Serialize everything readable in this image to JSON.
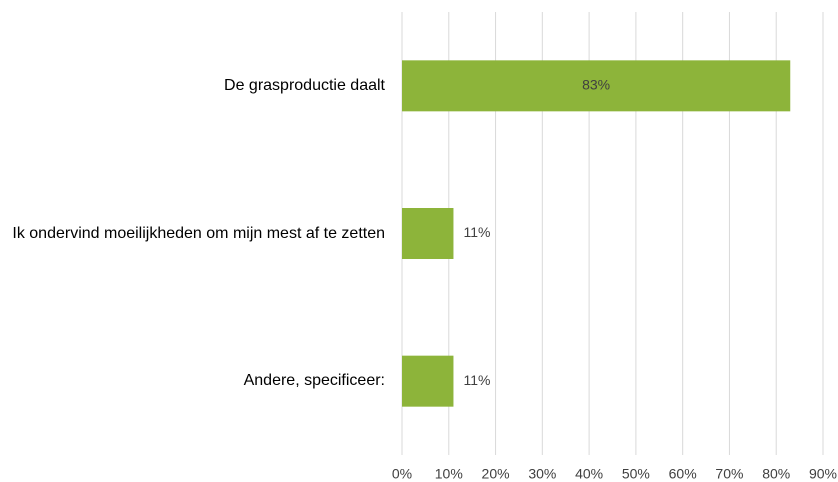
{
  "chart_data": {
    "type": "barh",
    "categories": [
      "De grasproductie daalt",
      "Ik ondervind moeilijkheden om mijn mest af te zetten",
      "Andere, specificeer:"
    ],
    "values": [
      83,
      11,
      11
    ],
    "value_labels": [
      "83%",
      "11%",
      "11%"
    ],
    "color": "#8db43a",
    "xlim": [
      0,
      90
    ],
    "xticks": [
      {
        "value": 0,
        "label": "0%"
      },
      {
        "value": 10,
        "label": "10%"
      },
      {
        "value": 20,
        "label": "20%"
      },
      {
        "value": 30,
        "label": "30%"
      },
      {
        "value": 40,
        "label": "40%"
      },
      {
        "value": 50,
        "label": "50%"
      },
      {
        "value": 60,
        "label": "60%"
      },
      {
        "value": 70,
        "label": "70%"
      },
      {
        "value": 80,
        "label": "80%"
      },
      {
        "value": 90,
        "label": "90%"
      }
    ],
    "grid": true
  }
}
